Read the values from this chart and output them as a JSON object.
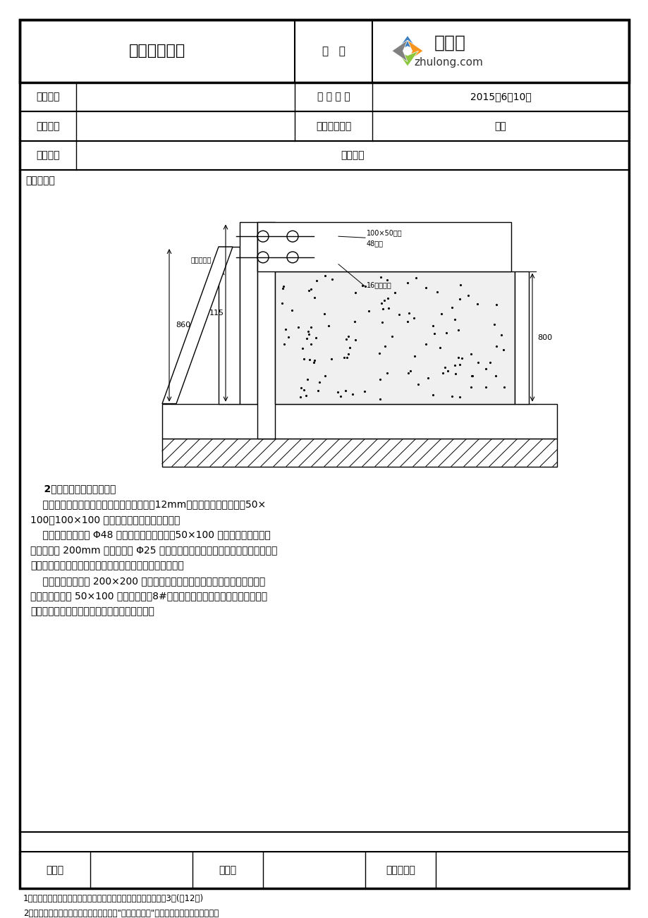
{
  "page_width": 9.2,
  "page_height": 13.02,
  "bg_color": "#ffffff",
  "border_color": "#000000",
  "title": "方案交底记录",
  "biaohao": "编   号",
  "logo_text1": "築龍網",
  "logo_text2": "zhulong.com",
  "row1_col1_label": "工程名称",
  "row1_col2_label": "交 底 日 期",
  "row1_col2_value": "2015年6月10日",
  "row2_col1_label": "施工单位",
  "row2_col2_label": "分项工程名称",
  "row2_col2_value": "模板",
  "row3_label": "交底提要",
  "row3_value": "模板设计",
  "content_label": "交底内容：",
  "para2_title": "2）底板集水坑模板施工：",
  "para2_body1": "    基础底板内集水坑、泵坑等坑壁模板采用以12mm厚覆膜多层板为板面，50×\n100、100×100 木方为主、次龙骨的木模板。",
  "para2_body2": "    集水坑坑壁侧模用 Φ48 钢管对撑加固，四角设50×100 木方斜向支撑。在集\n水坑坑壁外 200mm 范围内插入 Φ25 附加筋，附加筋上下需与底板上下铁绑牢，在\n附加筋上焊接固定坑壁模板用钢筋，钢筋端头涂刷防锈漆。",
  "para2_body3": "    集水坑底模中间开 200×200 的排气孔，为防止浇筑混凝土时坑底模板上浮，\n坑壁模板上口钉 50×100 木方，木方用8#铅丝与底板钢筋拉结，坑底模板也采用\n同样的方法与坑底钢筋拉结，具体做法见下图：",
  "footer_label1": "审核人",
  "footer_label2": "交底人",
  "footer_label3": "接受交底人",
  "footnote1": "1、本表由施工单位填写，交底单位与接受交底单位各存一份。第3页(共12页)",
  "footnote2": "2、当做分项工程施工技术交底时，应填写\"分项工程名称\"栏，其他技术交底可不填写。"
}
